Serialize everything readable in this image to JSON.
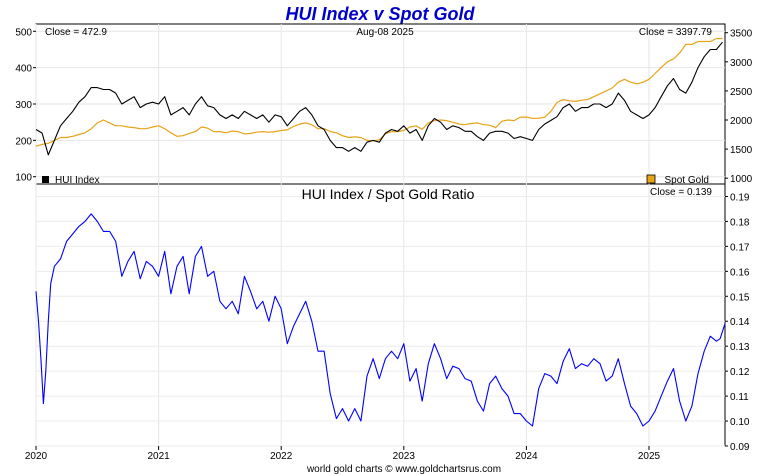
{
  "chart_data": [
    {
      "type": "line",
      "title": "HUI Index v Spot Gold",
      "date_label": "Aug-08  2025",
      "left_axis": {
        "ylim": [
          80,
          520
        ],
        "ticks": [
          100,
          200,
          300,
          400,
          500
        ]
      },
      "right_axis": {
        "ylim": [
          900,
          3650
        ],
        "ticks": [
          1000,
          1500,
          2000,
          2500,
          3000,
          3500
        ]
      },
      "legend": [
        {
          "name": "HUI Index",
          "color": "#000000",
          "position": "bottom-left"
        },
        {
          "name": "Spot Gold",
          "color": "#e8a317",
          "position": "bottom-right"
        }
      ],
      "annotations": {
        "close_left": "Close = 472.9",
        "close_right": "Close = 3397.79"
      },
      "series": [
        {
          "name": "HUI Index",
          "axis": "left",
          "color": "#000000",
          "x": [
            2020.0,
            2020.05,
            2020.1,
            2020.15,
            2020.2,
            2020.25,
            2020.3,
            2020.35,
            2020.4,
            2020.45,
            2020.5,
            2020.55,
            2020.6,
            2020.65,
            2020.7,
            2020.75,
            2020.8,
            2020.85,
            2020.9,
            2020.95,
            2021.0,
            2021.05,
            2021.1,
            2021.15,
            2021.2,
            2021.25,
            2021.3,
            2021.35,
            2021.4,
            2021.45,
            2021.5,
            2021.55,
            2021.6,
            2021.65,
            2021.7,
            2021.75,
            2021.8,
            2021.85,
            2021.9,
            2021.95,
            2022.0,
            2022.05,
            2022.1,
            2022.15,
            2022.2,
            2022.25,
            2022.3,
            2022.35,
            2022.4,
            2022.45,
            2022.5,
            2022.55,
            2022.6,
            2022.65,
            2022.7,
            2022.75,
            2022.8,
            2022.85,
            2022.9,
            2022.95,
            2023.0,
            2023.05,
            2023.1,
            2023.15,
            2023.2,
            2023.25,
            2023.3,
            2023.35,
            2023.4,
            2023.45,
            2023.5,
            2023.55,
            2023.6,
            2023.65,
            2023.7,
            2023.75,
            2023.8,
            2023.85,
            2023.9,
            2023.95,
            2024.0,
            2024.05,
            2024.1,
            2024.15,
            2024.2,
            2024.25,
            2024.3,
            2024.35,
            2024.4,
            2024.45,
            2024.5,
            2024.55,
            2024.6,
            2024.65,
            2024.7,
            2024.75,
            2024.8,
            2024.85,
            2024.9,
            2024.95,
            2025.0,
            2025.05,
            2025.1,
            2025.15,
            2025.2,
            2025.25,
            2025.3,
            2025.35,
            2025.4,
            2025.45,
            2025.5,
            2025.55,
            2025.6
          ],
          "values": [
            230,
            220,
            160,
            200,
            240,
            260,
            280,
            305,
            320,
            345,
            345,
            340,
            340,
            330,
            300,
            310,
            320,
            290,
            300,
            305,
            300,
            320,
            270,
            280,
            290,
            270,
            300,
            320,
            295,
            290,
            270,
            260,
            270,
            260,
            280,
            270,
            260,
            270,
            250,
            270,
            265,
            240,
            260,
            280,
            290,
            270,
            240,
            230,
            200,
            180,
            180,
            170,
            180,
            170,
            195,
            200,
            195,
            220,
            230,
            225,
            240,
            220,
            230,
            200,
            240,
            260,
            250,
            230,
            240,
            235,
            225,
            225,
            210,
            200,
            220,
            225,
            225,
            220,
            205,
            210,
            205,
            200,
            230,
            245,
            255,
            265,
            290,
            300,
            280,
            290,
            290,
            300,
            300,
            290,
            300,
            330,
            310,
            280,
            270,
            260,
            270,
            290,
            320,
            350,
            370,
            340,
            330,
            360,
            400,
            430,
            450,
            450,
            470
          ]
        },
        {
          "name": "Spot Gold",
          "axis": "right",
          "color": "#e8a317",
          "x": [
            2020.0,
            2020.05,
            2020.1,
            2020.15,
            2020.2,
            2020.25,
            2020.3,
            2020.35,
            2020.4,
            2020.45,
            2020.5,
            2020.55,
            2020.6,
            2020.65,
            2020.7,
            2020.75,
            2020.8,
            2020.85,
            2020.9,
            2020.95,
            2021.0,
            2021.05,
            2021.1,
            2021.15,
            2021.2,
            2021.25,
            2021.3,
            2021.35,
            2021.4,
            2021.45,
            2021.5,
            2021.55,
            2021.6,
            2021.65,
            2021.7,
            2021.75,
            2021.8,
            2021.85,
            2021.9,
            2021.95,
            2022.0,
            2022.05,
            2022.1,
            2022.15,
            2022.2,
            2022.25,
            2022.3,
            2022.35,
            2022.4,
            2022.45,
            2022.5,
            2022.55,
            2022.6,
            2022.65,
            2022.7,
            2022.75,
            2022.8,
            2022.85,
            2022.9,
            2022.95,
            2023.0,
            2023.05,
            2023.1,
            2023.15,
            2023.2,
            2023.25,
            2023.3,
            2023.35,
            2023.4,
            2023.45,
            2023.5,
            2023.55,
            2023.6,
            2023.65,
            2023.7,
            2023.75,
            2023.8,
            2023.85,
            2023.9,
            2023.95,
            2024.0,
            2024.05,
            2024.1,
            2024.15,
            2024.2,
            2024.25,
            2024.3,
            2024.35,
            2024.4,
            2024.45,
            2024.5,
            2024.55,
            2024.6,
            2024.65,
            2024.7,
            2024.75,
            2024.8,
            2024.85,
            2024.9,
            2024.95,
            2025.0,
            2025.05,
            2025.1,
            2025.15,
            2025.2,
            2025.25,
            2025.3,
            2025.35,
            2025.4,
            2025.45,
            2025.5,
            2025.55,
            2025.6
          ],
          "values": [
            1550,
            1580,
            1600,
            1650,
            1700,
            1700,
            1720,
            1750,
            1780,
            1850,
            1950,
            2000,
            1950,
            1900,
            1900,
            1880,
            1870,
            1850,
            1850,
            1880,
            1900,
            1850,
            1780,
            1720,
            1730,
            1770,
            1800,
            1880,
            1860,
            1800,
            1800,
            1780,
            1810,
            1800,
            1760,
            1770,
            1790,
            1800,
            1790,
            1800,
            1820,
            1830,
            1890,
            1930,
            1950,
            1920,
            1850,
            1850,
            1800,
            1780,
            1730,
            1700,
            1710,
            1700,
            1650,
            1640,
            1660,
            1760,
            1800,
            1800,
            1820,
            1880,
            1900,
            1840,
            1950,
            1990,
            2000,
            1990,
            1960,
            1930,
            1920,
            1940,
            1950,
            1920,
            1910,
            1870,
            1980,
            2000,
            1990,
            2050,
            2050,
            2030,
            2030,
            2050,
            2150,
            2300,
            2350,
            2330,
            2320,
            2340,
            2350,
            2400,
            2450,
            2500,
            2550,
            2650,
            2700,
            2650,
            2620,
            2650,
            2700,
            2800,
            2900,
            3000,
            3050,
            3150,
            3300,
            3300,
            3350,
            3350,
            3350,
            3400,
            3400
          ]
        }
      ]
    },
    {
      "type": "line",
      "title": "HUI Index  /  Spot Gold Ratio",
      "annotation": "Close = 0.139",
      "ylim": [
        0.09,
        0.195
      ],
      "yticks": [
        0.09,
        0.1,
        0.11,
        0.12,
        0.13,
        0.14,
        0.15,
        0.16,
        0.17,
        0.18,
        0.19
      ],
      "xlim": [
        2020.0,
        2025.62
      ],
      "xticks": [
        "2020",
        "2021",
        "2022",
        "2023",
        "2024",
        "2025"
      ],
      "series": [
        {
          "name": "HUI Index / Spot Gold",
          "color": "#0000ff",
          "x": [
            2020.0,
            2020.02,
            2020.04,
            2020.06,
            2020.08,
            2020.1,
            2020.12,
            2020.15,
            2020.2,
            2020.25,
            2020.3,
            2020.35,
            2020.4,
            2020.45,
            2020.5,
            2020.55,
            2020.6,
            2020.65,
            2020.7,
            2020.75,
            2020.8,
            2020.85,
            2020.9,
            2020.95,
            2021.0,
            2021.05,
            2021.1,
            2021.15,
            2021.2,
            2021.25,
            2021.3,
            2021.35,
            2021.4,
            2021.45,
            2021.5,
            2021.55,
            2021.6,
            2021.65,
            2021.7,
            2021.75,
            2021.8,
            2021.85,
            2021.9,
            2021.95,
            2022.0,
            2022.05,
            2022.1,
            2022.15,
            2022.2,
            2022.25,
            2022.3,
            2022.35,
            2022.4,
            2022.45,
            2022.5,
            2022.55,
            2022.6,
            2022.65,
            2022.7,
            2022.75,
            2022.8,
            2022.85,
            2022.9,
            2022.95,
            2023.0,
            2023.05,
            2023.1,
            2023.15,
            2023.2,
            2023.25,
            2023.3,
            2023.35,
            2023.4,
            2023.45,
            2023.5,
            2023.55,
            2023.6,
            2023.65,
            2023.7,
            2023.75,
            2023.8,
            2023.85,
            2023.9,
            2023.95,
            2024.0,
            2024.05,
            2024.1,
            2024.15,
            2024.2,
            2024.25,
            2024.3,
            2024.35,
            2024.4,
            2024.45,
            2024.5,
            2024.55,
            2024.6,
            2024.65,
            2024.7,
            2024.75,
            2024.8,
            2024.85,
            2024.9,
            2024.95,
            2025.0,
            2025.05,
            2025.1,
            2025.15,
            2025.2,
            2025.25,
            2025.3,
            2025.35,
            2025.4,
            2025.45,
            2025.5,
            2025.55,
            2025.58,
            2025.62
          ],
          "values": [
            0.152,
            0.14,
            0.125,
            0.107,
            0.12,
            0.14,
            0.155,
            0.162,
            0.165,
            0.172,
            0.175,
            0.178,
            0.18,
            0.183,
            0.18,
            0.176,
            0.176,
            0.172,
            0.158,
            0.164,
            0.168,
            0.157,
            0.164,
            0.162,
            0.158,
            0.168,
            0.151,
            0.162,
            0.166,
            0.151,
            0.166,
            0.17,
            0.158,
            0.16,
            0.148,
            0.145,
            0.148,
            0.143,
            0.158,
            0.152,
            0.145,
            0.148,
            0.14,
            0.15,
            0.145,
            0.131,
            0.138,
            0.143,
            0.148,
            0.14,
            0.128,
            0.128,
            0.111,
            0.101,
            0.105,
            0.1,
            0.105,
            0.1,
            0.118,
            0.125,
            0.117,
            0.125,
            0.128,
            0.125,
            0.131,
            0.116,
            0.121,
            0.108,
            0.123,
            0.131,
            0.125,
            0.117,
            0.122,
            0.121,
            0.117,
            0.116,
            0.108,
            0.104,
            0.115,
            0.118,
            0.113,
            0.11,
            0.103,
            0.103,
            0.1,
            0.098,
            0.113,
            0.119,
            0.118,
            0.115,
            0.124,
            0.129,
            0.121,
            0.123,
            0.122,
            0.125,
            0.123,
            0.116,
            0.118,
            0.125,
            0.115,
            0.106,
            0.103,
            0.098,
            0.1,
            0.104,
            0.11,
            0.116,
            0.121,
            0.108,
            0.1,
            0.106,
            0.119,
            0.128,
            0.134,
            0.132,
            0.133,
            0.139
          ]
        }
      ]
    }
  ],
  "footer": "world gold charts © www.goldchartsrus.com"
}
